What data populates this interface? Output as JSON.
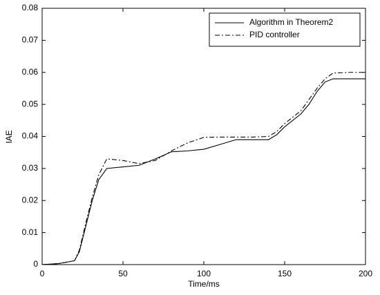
{
  "chart_data": {
    "type": "line",
    "x_label": "Time/ms",
    "y_label": "IAE",
    "x": [
      0,
      10,
      20,
      23,
      27,
      31,
      35,
      40,
      50,
      60,
      70,
      80,
      90,
      100,
      110,
      120,
      130,
      140,
      145,
      150,
      160,
      165,
      170,
      175,
      180,
      190,
      200
    ],
    "series": [
      {
        "name": "Algorithm in Theorem2",
        "color": "#000000",
        "linestyle": "solid",
        "values": [
          0,
          0.0003,
          0.0012,
          0.004,
          0.012,
          0.02,
          0.0265,
          0.03,
          0.0305,
          0.031,
          0.033,
          0.0352,
          0.0355,
          0.036,
          0.0375,
          0.039,
          0.039,
          0.039,
          0.0405,
          0.043,
          0.047,
          0.05,
          0.054,
          0.057,
          0.058,
          0.058,
          0.058
        ]
      },
      {
        "name": "PID controller",
        "color": "#000000",
        "linestyle": "dashdot",
        "values": [
          0,
          0.0003,
          0.0012,
          0.0045,
          0.013,
          0.021,
          0.028,
          0.033,
          0.0325,
          0.0315,
          0.0325,
          0.0355,
          0.038,
          0.0397,
          0.0398,
          0.0398,
          0.0398,
          0.04,
          0.0415,
          0.044,
          0.048,
          0.0515,
          0.055,
          0.058,
          0.0598,
          0.06,
          0.06
        ]
      }
    ],
    "xlim": [
      0,
      200
    ],
    "xticks": [
      0,
      50,
      100,
      150,
      200
    ],
    "ylim": [
      0,
      0.08
    ],
    "yticks": [
      0,
      0.01,
      0.02,
      0.03,
      0.04,
      0.05,
      0.06,
      0.07,
      0.08
    ],
    "grid": false,
    "legend": "upper right"
  }
}
